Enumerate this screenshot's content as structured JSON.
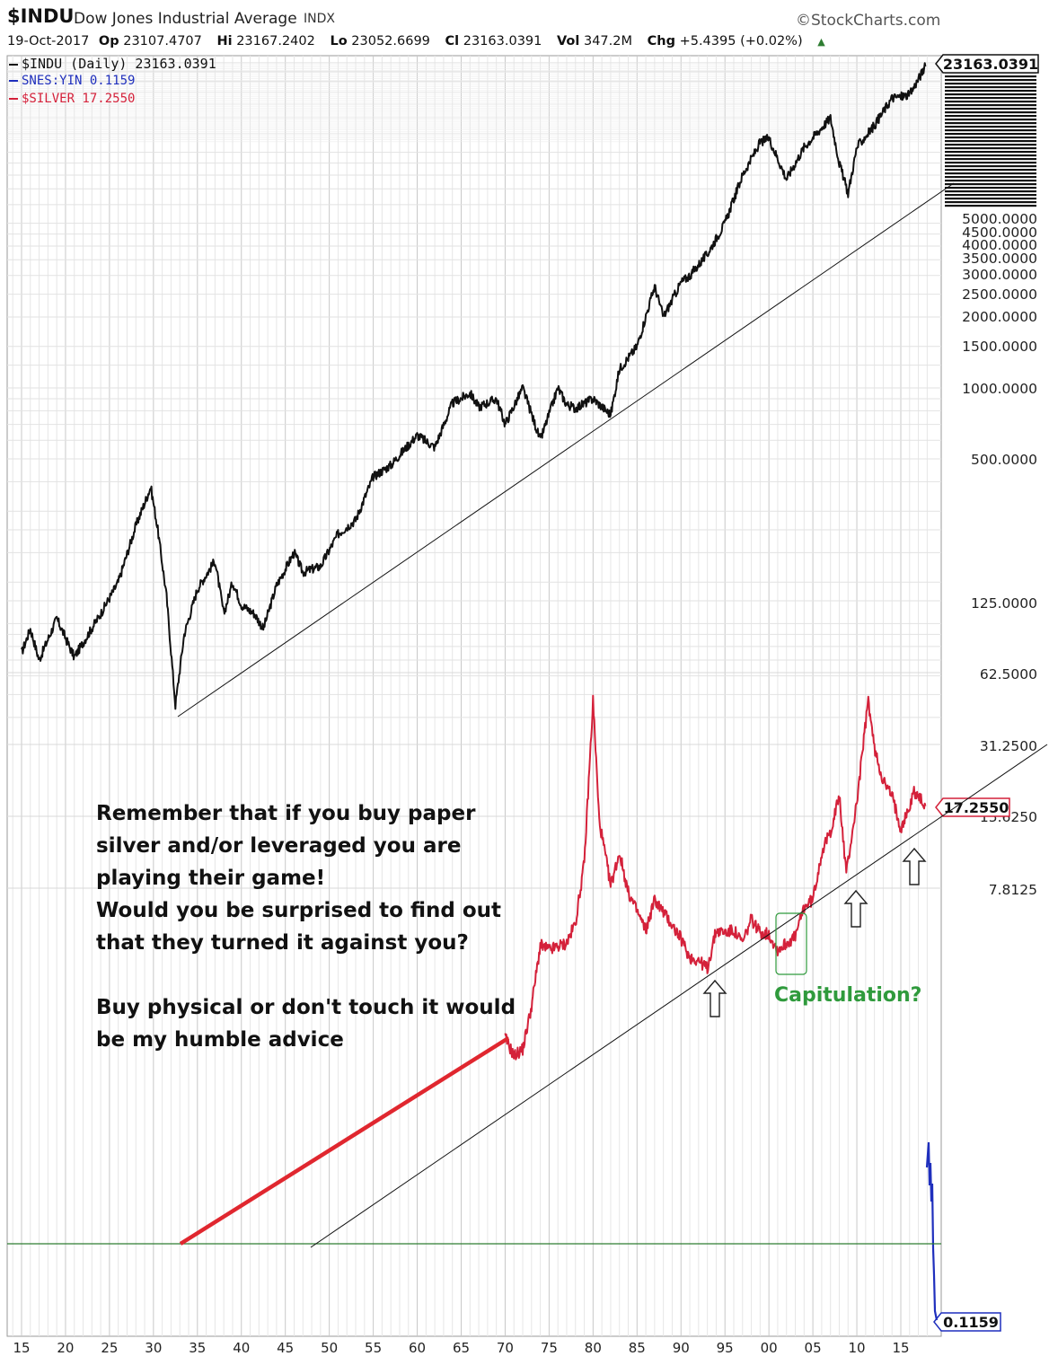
{
  "header": {
    "symbol": "$INDU",
    "name": "Dow Jones Industrial Average",
    "exchange": "INDX",
    "brand": "©StockCharts.com",
    "date": "19-Oct-2017",
    "stats": [
      {
        "label": "Op",
        "value": "23107.4707"
      },
      {
        "label": "Hi",
        "value": "23167.2402"
      },
      {
        "label": "Lo",
        "value": "23052.6699"
      },
      {
        "label": "Cl",
        "value": "23163.0391"
      },
      {
        "label": "Vol",
        "value": "347.2M"
      },
      {
        "label": "Chg",
        "value": "+5.4395 (+0.02%)"
      }
    ],
    "change_icon": "up-triangle-icon"
  },
  "legend": [
    {
      "text": "$INDU (Daily) 23163.0391",
      "color": "#111111"
    },
    {
      "text": "SNES:YIN 0.1159",
      "color": "#1f2fbd"
    },
    {
      "text": "$SILVER 17.2550",
      "color": "#d4213a"
    }
  ],
  "annotations": {
    "note_lines": [
      "Remember that if you buy paper",
      "silver and/or leveraged you are",
      "playing their game!",
      "Would you be surprised to find out",
      "that they turned it against you?",
      "",
      "Buy physical or don't touch it would",
      "be my humble advice"
    ],
    "capitulation": "Capitulation?"
  },
  "colors": {
    "dow": "#111111",
    "silver": "#d4213a",
    "ratio": "#1f2fbd",
    "zero_line": "#2e7d32",
    "capitulation": "#2f9a3c",
    "grid": "#d9d9d9"
  },
  "chart_data": {
    "type": "line",
    "title": "$INDU Dow Jones Industrial Average INDX",
    "scale": "log",
    "x_axis_labels": [
      "15",
      "20",
      "25",
      "30",
      "35",
      "40",
      "45",
      "50",
      "55",
      "60",
      "65",
      "70",
      "75",
      "80",
      "85",
      "90",
      "95",
      "00",
      "05",
      "10",
      "15"
    ],
    "y_axis_labels": [
      "23163.0391",
      "5000.0000",
      "4500.0000",
      "4000.0000",
      "3500.0000",
      "3000.0000",
      "2500.0000",
      "2000.0000",
      "1500.0000",
      "1000.0000",
      "500.0000",
      "125.0000",
      "62.5000",
      "31.2500",
      "17.2550",
      "15.6250",
      "7.8125",
      "0.1159"
    ],
    "last_value_tags": [
      {
        "series": "$INDU",
        "value": "23163.0391"
      },
      {
        "series": "$SILVER",
        "value": "17.2550"
      },
      {
        "series": "SNES:YIN",
        "value": "0.1159"
      }
    ],
    "series": [
      {
        "name": "$INDU (Daily)",
        "last": 23163.0391,
        "points": [
          [
            1915,
            75
          ],
          [
            1916,
            95
          ],
          [
            1917,
            70
          ],
          [
            1919,
            105
          ],
          [
            1921,
            72
          ],
          [
            1924,
            110
          ],
          [
            1926,
            150
          ],
          [
            1928,
            260
          ],
          [
            1929.7,
            380
          ],
          [
            1930.5,
            250
          ],
          [
            1931.5,
            130
          ],
          [
            1932.5,
            45
          ],
          [
            1933.5,
            90
          ],
          [
            1935,
            140
          ],
          [
            1937,
            185
          ],
          [
            1938,
            110
          ],
          [
            1939,
            150
          ],
          [
            1940,
            120
          ],
          [
            1941.5,
            110
          ],
          [
            1942.5,
            95
          ],
          [
            1944,
            145
          ],
          [
            1946,
            200
          ],
          [
            1947,
            165
          ],
          [
            1949,
            175
          ],
          [
            1951,
            240
          ],
          [
            1953,
            275
          ],
          [
            1955,
            420
          ],
          [
            1957,
            470
          ],
          [
            1958,
            520
          ],
          [
            1960,
            630
          ],
          [
            1962,
            560
          ],
          [
            1964,
            860
          ],
          [
            1966,
            950
          ],
          [
            1967,
            830
          ],
          [
            1969,
            900
          ],
          [
            1970,
            700
          ],
          [
            1972,
            1000
          ],
          [
            1974,
            600
          ],
          [
            1976,
            1000
          ],
          [
            1977,
            850
          ],
          [
            1978,
            820
          ],
          [
            1980,
            900
          ],
          [
            1982,
            770
          ],
          [
            1983,
            1200
          ],
          [
            1985,
            1500
          ],
          [
            1987,
            2700
          ],
          [
            1988,
            2000
          ],
          [
            1990,
            2800
          ],
          [
            1991,
            3000
          ],
          [
            1993,
            3700
          ],
          [
            1995,
            5000
          ],
          [
            1997,
            8000
          ],
          [
            1999,
            11000
          ],
          [
            2000,
            11500
          ],
          [
            2002,
            7700
          ],
          [
            2004,
            10500
          ],
          [
            2007,
            14000
          ],
          [
            2008,
            9000
          ],
          [
            2009,
            6700
          ],
          [
            2010,
            10500
          ],
          [
            2012,
            13000
          ],
          [
            2014,
            17000
          ],
          [
            2016,
            17500
          ],
          [
            2017.8,
            23163.0391
          ]
        ]
      },
      {
        "name": "$SILVER",
        "last": 17.255,
        "points": [
          [
            1970,
            1.85
          ],
          [
            1971,
            1.55
          ],
          [
            1972,
            1.65
          ],
          [
            1973,
            2.5
          ],
          [
            1974,
            4.5
          ],
          [
            1975,
            4.3
          ],
          [
            1977,
            4.6
          ],
          [
            1978,
            5.6
          ],
          [
            1979,
            10
          ],
          [
            1980,
            48
          ],
          [
            1980.7,
            15
          ],
          [
            1982,
            8
          ],
          [
            1983,
            11
          ],
          [
            1984,
            7.5
          ],
          [
            1986,
            5.2
          ],
          [
            1987,
            7
          ],
          [
            1988,
            6.2
          ],
          [
            1990,
            4.8
          ],
          [
            1991,
            4
          ],
          [
            1992,
            3.9
          ],
          [
            1993,
            3.6
          ],
          [
            1994,
            5.2
          ],
          [
            1995,
            5.1
          ],
          [
            1996,
            5.2
          ],
          [
            1997,
            4.6
          ],
          [
            1998,
            5.8
          ],
          [
            1999,
            5.1
          ],
          [
            2000,
            5.0
          ],
          [
            2001,
            4.3
          ],
          [
            2002,
            4.6
          ],
          [
            2003,
            4.9
          ],
          [
            2004,
            6.5
          ],
          [
            2005,
            7
          ],
          [
            2006,
            11
          ],
          [
            2007,
            13.5
          ],
          [
            2008,
            19
          ],
          [
            2008.8,
            9
          ],
          [
            2010,
            18
          ],
          [
            2011.3,
            48
          ],
          [
            2012,
            30
          ],
          [
            2013,
            22
          ],
          [
            2014,
            19
          ],
          [
            2015,
            14
          ],
          [
            2016,
            17
          ],
          [
            2016.5,
            20
          ],
          [
            2017.8,
            17.255
          ]
        ]
      },
      {
        "name": "SNES:YIN",
        "last": 0.1159,
        "points": []
      }
    ]
  }
}
